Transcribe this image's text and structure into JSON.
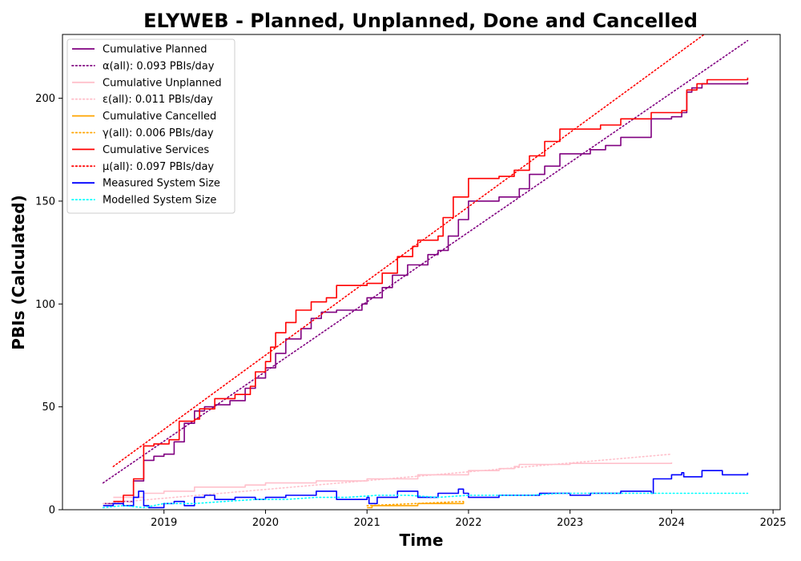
{
  "chart_data": {
    "type": "line",
    "title": "ELYWEB - Planned, Unplanned, Done  and Cancelled",
    "xlabel": "Time",
    "ylabel": "PBIs (Calculated)",
    "xlim": [
      2018.0,
      2025.07
    ],
    "ylim": [
      0,
      231
    ],
    "x_ticks": [
      2019,
      2020,
      2021,
      2022,
      2023,
      2024,
      2025
    ],
    "y_ticks": [
      0,
      50,
      100,
      150,
      200
    ],
    "grid": false,
    "legend_position": "top-left",
    "series": [
      {
        "name": "Cumulative Planned",
        "style": "solid",
        "color": "#800080",
        "x": [
          2018.4,
          2018.6,
          2018.7,
          2018.8,
          2018.9,
          2019.0,
          2019.1,
          2019.2,
          2019.3,
          2019.4,
          2019.5,
          2019.65,
          2019.8,
          2019.9,
          2020.0,
          2020.1,
          2020.2,
          2020.35,
          2020.45,
          2020.55,
          2020.7,
          2020.95,
          2021.0,
          2021.15,
          2021.25,
          2021.4,
          2021.6,
          2021.7,
          2021.8,
          2021.9,
          2022.0,
          2022.3,
          2022.5,
          2022.6,
          2022.75,
          2022.9,
          2023.2,
          2023.35,
          2023.5,
          2023.8,
          2024.0,
          2024.1,
          2024.15,
          2024.2,
          2024.3,
          2024.75
        ],
        "values": [
          3,
          4,
          14,
          24,
          26,
          27,
          33,
          42,
          48,
          50,
          51,
          53,
          59,
          64,
          69,
          76,
          83,
          88,
          93,
          96,
          97,
          100,
          103,
          108,
          114,
          119,
          124,
          126,
          133,
          141,
          150,
          152,
          156,
          163,
          167,
          173,
          175,
          177,
          181,
          190,
          191,
          193,
          203,
          205,
          207,
          208
        ]
      },
      {
        "name": "α(all): 0.093 PBIs/day",
        "style": "dotted",
        "color": "#800080",
        "x": [
          2018.4,
          2024.75
        ],
        "values": [
          13,
          228
        ]
      },
      {
        "name": "Cumulative Unplanned",
        "style": "solid",
        "color": "#ffc0cb",
        "x": [
          2018.5,
          2018.8,
          2019.0,
          2019.3,
          2019.8,
          2020.0,
          2020.5,
          2021.0,
          2021.5,
          2022.0,
          2022.3,
          2022.45,
          2022.5,
          2023.0,
          2024.0
        ],
        "values": [
          6,
          8,
          9,
          11,
          12,
          13,
          14,
          15,
          17,
          19,
          20,
          21,
          22,
          22.5,
          23
        ]
      },
      {
        "name": "ε(all): 0.011 PBIs/day",
        "style": "dotted",
        "color": "#ffc0cb",
        "x": [
          2018.4,
          2024.0
        ],
        "values": [
          3,
          27
        ]
      },
      {
        "name": "Cumulative Cancelled",
        "style": "solid",
        "color": "#ffa500",
        "x": [
          2021.0,
          2021.05,
          2021.5,
          2021.95
        ],
        "values": [
          1,
          2,
          3,
          4
        ]
      },
      {
        "name": "γ(all): 0.006 PBIs/day",
        "style": "dotted",
        "color": "#ffa500",
        "x": [
          2021.0,
          2021.95
        ],
        "values": [
          2,
          4
        ]
      },
      {
        "name": "Cumulative Services",
        "style": "solid",
        "color": "#ff0000",
        "x": [
          2018.5,
          2018.6,
          2018.7,
          2018.8,
          2018.9,
          2019.05,
          2019.15,
          2019.3,
          2019.35,
          2019.5,
          2019.7,
          2019.85,
          2019.9,
          2020.0,
          2020.05,
          2020.1,
          2020.2,
          2020.3,
          2020.45,
          2020.6,
          2020.7,
          2021.0,
          2021.15,
          2021.3,
          2021.45,
          2021.5,
          2021.7,
          2021.75,
          2021.85,
          2022.0,
          2022.3,
          2022.45,
          2022.6,
          2022.75,
          2022.9,
          2023.3,
          2023.5,
          2023.8,
          2024.1,
          2024.15,
          2024.25,
          2024.35,
          2024.75
        ],
        "values": [
          4,
          7,
          15,
          31,
          32,
          34,
          43,
          44,
          49,
          54,
          56,
          60,
          67,
          72,
          79,
          86,
          91,
          97,
          101,
          103,
          109,
          110,
          115,
          123,
          128,
          131,
          133,
          142,
          152,
          161,
          162,
          165,
          172,
          179,
          185,
          187,
          190,
          193,
          194,
          204,
          207,
          209,
          210
        ]
      },
      {
        "name": "μ(all): 0.097 PBIs/day",
        "style": "dotted",
        "color": "#ff0000",
        "x": [
          2018.5,
          2024.32
        ],
        "values": [
          21,
          231
        ]
      },
      {
        "name": "Measured System Size",
        "style": "solid",
        "color": "#0000ff",
        "x": [
          2018.4,
          2018.5,
          2018.6,
          2018.7,
          2018.75,
          2018.8,
          2018.85,
          2019.0,
          2019.1,
          2019.2,
          2019.3,
          2019.4,
          2019.5,
          2019.7,
          2019.9,
          2020.0,
          2020.2,
          2020.5,
          2020.7,
          2021.0,
          2021.02,
          2021.1,
          2021.3,
          2021.5,
          2021.7,
          2021.9,
          2021.95,
          2022.0,
          2022.3,
          2022.5,
          2022.7,
          2023.0,
          2023.2,
          2023.5,
          2023.8,
          2023.82,
          2024.0,
          2024.1,
          2024.12,
          2024.3,
          2024.5,
          2024.75
        ],
        "values": [
          2,
          3,
          2,
          6,
          9,
          2,
          1,
          3,
          4,
          2,
          6,
          7,
          5,
          6,
          5,
          6,
          7,
          9,
          5,
          6,
          3,
          6,
          9,
          6,
          8,
          10,
          8,
          6,
          7,
          7,
          8,
          7,
          8,
          9,
          8,
          15,
          17,
          18,
          16,
          19,
          17,
          18
        ]
      },
      {
        "name": "Modelled System Size",
        "style": "dotted",
        "color": "#00ffff",
        "x": [
          2018.4,
          2018.6,
          2018.8,
          2019.0,
          2019.3,
          2019.6,
          2019.9,
          2020.2,
          2020.5,
          2020.8,
          2021.1,
          2021.4,
          2021.7,
          2022.0,
          2022.3,
          2022.6,
          2022.9,
          2023.2,
          2023.5,
          2023.8,
          2024.1,
          2024.4,
          2024.75
        ],
        "values": [
          1,
          2,
          1,
          3,
          3,
          4,
          5,
          5,
          6,
          6,
          7,
          7,
          6,
          7,
          7,
          7,
          8,
          8,
          8,
          8,
          8,
          8,
          8
        ]
      }
    ]
  }
}
